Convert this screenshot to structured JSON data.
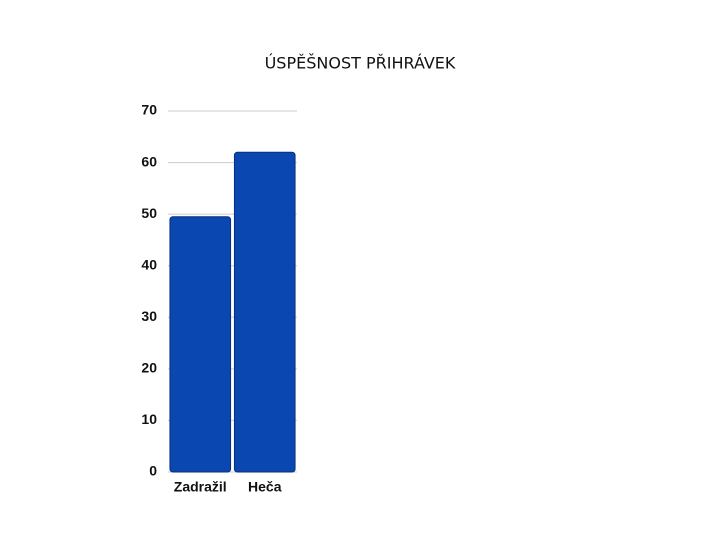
{
  "chart_data": {
    "type": "bar",
    "title": "ÚSPĚŠNOST PŘIHRÁVEK",
    "categories": [
      "Zadražil",
      "Heča"
    ],
    "values": [
      49.5,
      62
    ],
    "color": "#0a47b0",
    "ylim": [
      0,
      70
    ],
    "yticks": [
      0,
      10,
      20,
      30,
      40,
      50,
      60,
      70
    ],
    "grid": true
  }
}
